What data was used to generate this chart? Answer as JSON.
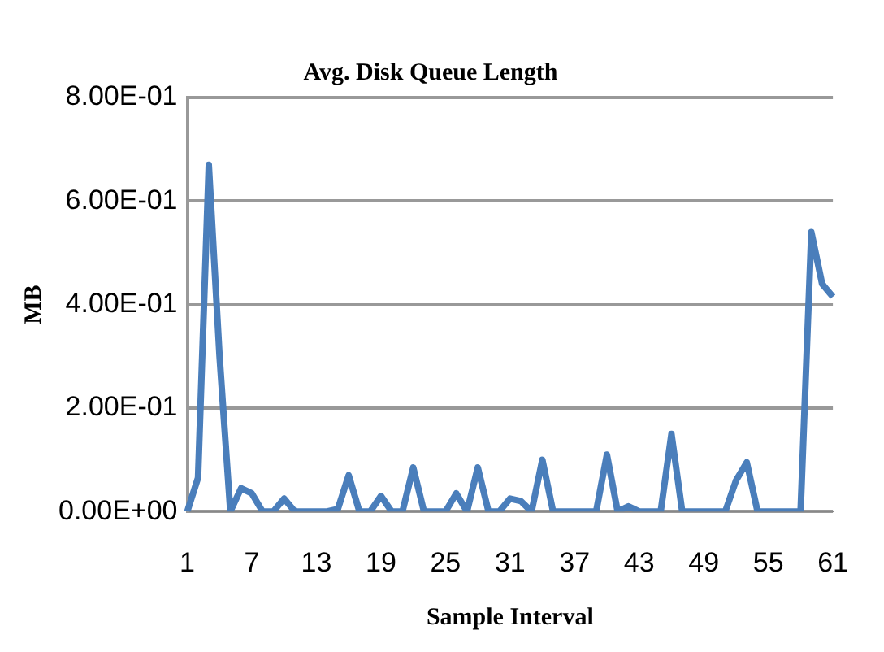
{
  "chart_data": {
    "type": "line",
    "title": "Avg. Disk Queue Length",
    "xlabel": "Sample Interval",
    "ylabel": "MB",
    "categories": [
      "1",
      null,
      null,
      null,
      null,
      null,
      "7",
      null,
      null,
      null,
      null,
      null,
      "13",
      null,
      null,
      null,
      null,
      null,
      "19",
      null,
      null,
      null,
      null,
      null,
      "25",
      null,
      null,
      null,
      null,
      null,
      "31",
      null,
      null,
      null,
      null,
      null,
      "37",
      null,
      null,
      null,
      null,
      null,
      "43",
      null,
      null,
      null,
      null,
      null,
      "49",
      null,
      null,
      null,
      null,
      null,
      "55",
      null,
      null,
      null,
      null,
      null,
      "61"
    ],
    "series": [
      {
        "color": "#4a7ebb",
        "values": [
          0,
          0.065,
          0.67,
          0.3,
          0,
          0.045,
          0.035,
          0,
          0,
          0.025,
          0,
          0,
          0,
          0,
          0.005,
          0.07,
          0,
          0,
          0.03,
          0,
          0,
          0.085,
          0,
          0,
          0,
          0.035,
          0,
          0.085,
          0,
          0,
          0.025,
          0.02,
          0,
          0.1,
          0,
          0,
          0,
          0,
          0,
          0.11,
          0,
          0.01,
          0,
          0,
          0,
          0.15,
          0,
          0,
          0,
          0,
          0,
          0.06,
          0.095,
          0,
          0,
          0,
          0,
          0,
          0.54,
          0.44,
          0.415
        ]
      }
    ],
    "ylim": [
      0,
      0.8
    ],
    "yticks": [
      {
        "value": 0,
        "label": "0.00E+00"
      },
      {
        "value": 0.2,
        "label": "2.00E-01"
      },
      {
        "value": 0.4,
        "label": "4.00E-01"
      },
      {
        "value": 0.6,
        "label": "6.00E-01"
      },
      {
        "value": 0.8,
        "label": "8.00E-01"
      }
    ],
    "grid": "y",
    "marker": "none"
  }
}
